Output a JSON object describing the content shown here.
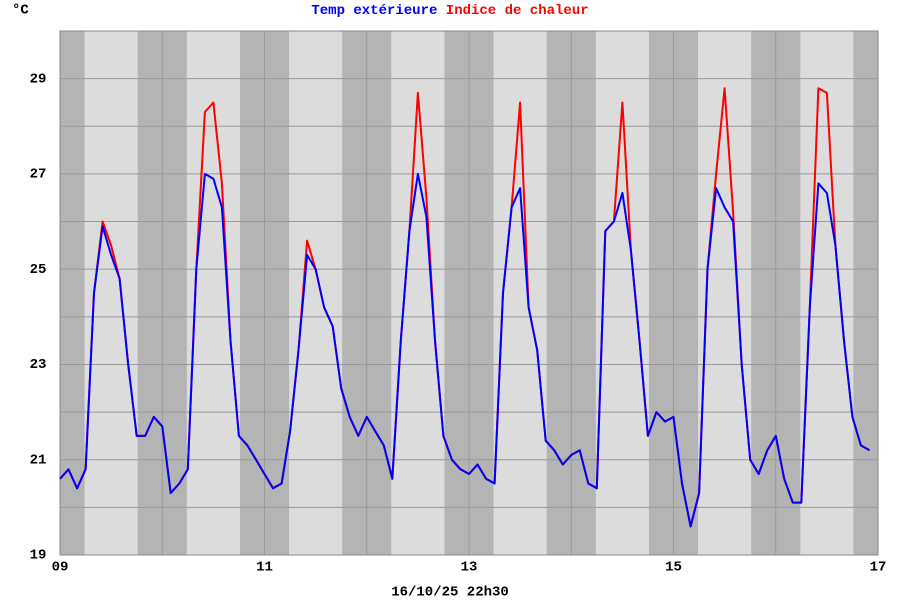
{
  "chart_data": {
    "type": "line",
    "y_label": "°C",
    "footer": "16/10/25 22h30",
    "x": [
      9,
      9.083,
      9.167,
      9.25,
      9.333,
      9.417,
      9.5,
      9.583,
      9.667,
      9.75,
      9.833,
      9.917,
      10,
      10.083,
      10.167,
      10.25,
      10.333,
      10.417,
      10.5,
      10.583,
      10.667,
      10.75,
      10.833,
      10.917,
      11,
      11.083,
      11.167,
      11.25,
      11.333,
      11.417,
      11.5,
      11.583,
      11.667,
      11.75,
      11.833,
      11.917,
      12,
      12.083,
      12.167,
      12.25,
      12.333,
      12.417,
      12.5,
      12.583,
      12.667,
      12.75,
      12.833,
      12.917,
      13,
      13.083,
      13.167,
      13.25,
      13.333,
      13.417,
      13.5,
      13.583,
      13.667,
      13.75,
      13.833,
      13.917,
      14,
      14.083,
      14.167,
      14.25,
      14.333,
      14.417,
      14.5,
      14.583,
      14.667,
      14.75,
      14.833,
      14.917,
      15,
      15.083,
      15.167,
      15.25,
      15.333,
      15.417,
      15.5,
      15.583,
      15.667,
      15.75,
      15.833,
      15.917,
      16,
      16.083,
      16.167,
      16.25,
      16.333,
      16.417,
      16.5,
      16.583,
      16.667,
      16.75,
      16.833,
      16.917
    ],
    "series": [
      {
        "name": "Temp extérieure",
        "color": "#0000ff",
        "values": [
          20.6,
          20.8,
          20.4,
          20.8,
          24.5,
          25.9,
          25.3,
          24.8,
          23.0,
          21.5,
          21.5,
          21.9,
          21.7,
          20.3,
          20.5,
          20.8,
          25.0,
          27.0,
          26.9,
          26.3,
          23.5,
          21.5,
          21.3,
          21.0,
          20.7,
          20.4,
          20.5,
          21.6,
          23.3,
          25.3,
          25.0,
          24.2,
          23.8,
          22.5,
          21.9,
          21.5,
          21.9,
          21.6,
          21.3,
          20.6,
          23.5,
          25.8,
          27.0,
          26.1,
          23.5,
          21.5,
          21.0,
          20.8,
          20.7,
          20.9,
          20.6,
          20.5,
          24.5,
          26.3,
          26.7,
          24.2,
          23.3,
          21.4,
          21.2,
          20.9,
          21.1,
          21.2,
          20.5,
          20.4,
          25.8,
          26.0,
          26.6,
          25.4,
          23.5,
          21.5,
          22.0,
          21.8,
          21.9,
          20.5,
          19.6,
          20.3,
          25.0,
          26.7,
          26.3,
          26.0,
          23.0,
          21.0,
          20.7,
          21.2,
          21.5,
          20.6,
          20.1,
          20.1,
          24.2,
          26.8,
          26.6,
          25.5,
          23.5,
          21.9,
          21.3,
          21.2
        ]
      },
      {
        "name": "Indice de chaleur",
        "color": "#ff0000",
        "values": [
          20.6,
          20.8,
          20.4,
          20.8,
          24.5,
          26.0,
          25.5,
          24.8,
          23.0,
          21.5,
          21.5,
          21.9,
          21.7,
          20.3,
          20.5,
          20.8,
          25.0,
          28.3,
          28.5,
          26.8,
          23.5,
          21.5,
          21.3,
          21.0,
          20.7,
          20.4,
          20.5,
          21.6,
          23.3,
          25.6,
          25.0,
          24.2,
          23.8,
          22.5,
          21.9,
          21.5,
          21.9,
          21.6,
          21.3,
          20.6,
          23.5,
          25.8,
          28.7,
          26.5,
          23.5,
          21.5,
          21.0,
          20.8,
          20.7,
          20.9,
          20.6,
          20.5,
          24.5,
          26.3,
          28.5,
          24.2,
          23.3,
          21.4,
          21.2,
          20.9,
          21.1,
          21.2,
          20.5,
          20.4,
          25.8,
          26.0,
          28.5,
          25.4,
          23.5,
          21.5,
          22.0,
          21.8,
          21.9,
          20.5,
          19.6,
          20.3,
          25.0,
          27.0,
          28.8,
          26.2,
          23.0,
          21.0,
          20.7,
          21.2,
          21.5,
          20.6,
          20.1,
          20.1,
          24.2,
          28.8,
          28.7,
          25.5,
          23.5,
          21.9,
          21.3,
          21.2
        ]
      }
    ],
    "xlim": [
      9,
      17
    ],
    "xticks": [
      {
        "value": 9,
        "label": "09"
      },
      11,
      13,
      15,
      17
    ],
    "minor_xticks": [
      10,
      12,
      14,
      16
    ],
    "ylim": [
      19,
      30
    ],
    "yticks": [
      19,
      21,
      23,
      25,
      27,
      29
    ],
    "minor_yticks": [
      20,
      22,
      24,
      26,
      28
    ],
    "grid": true
  }
}
